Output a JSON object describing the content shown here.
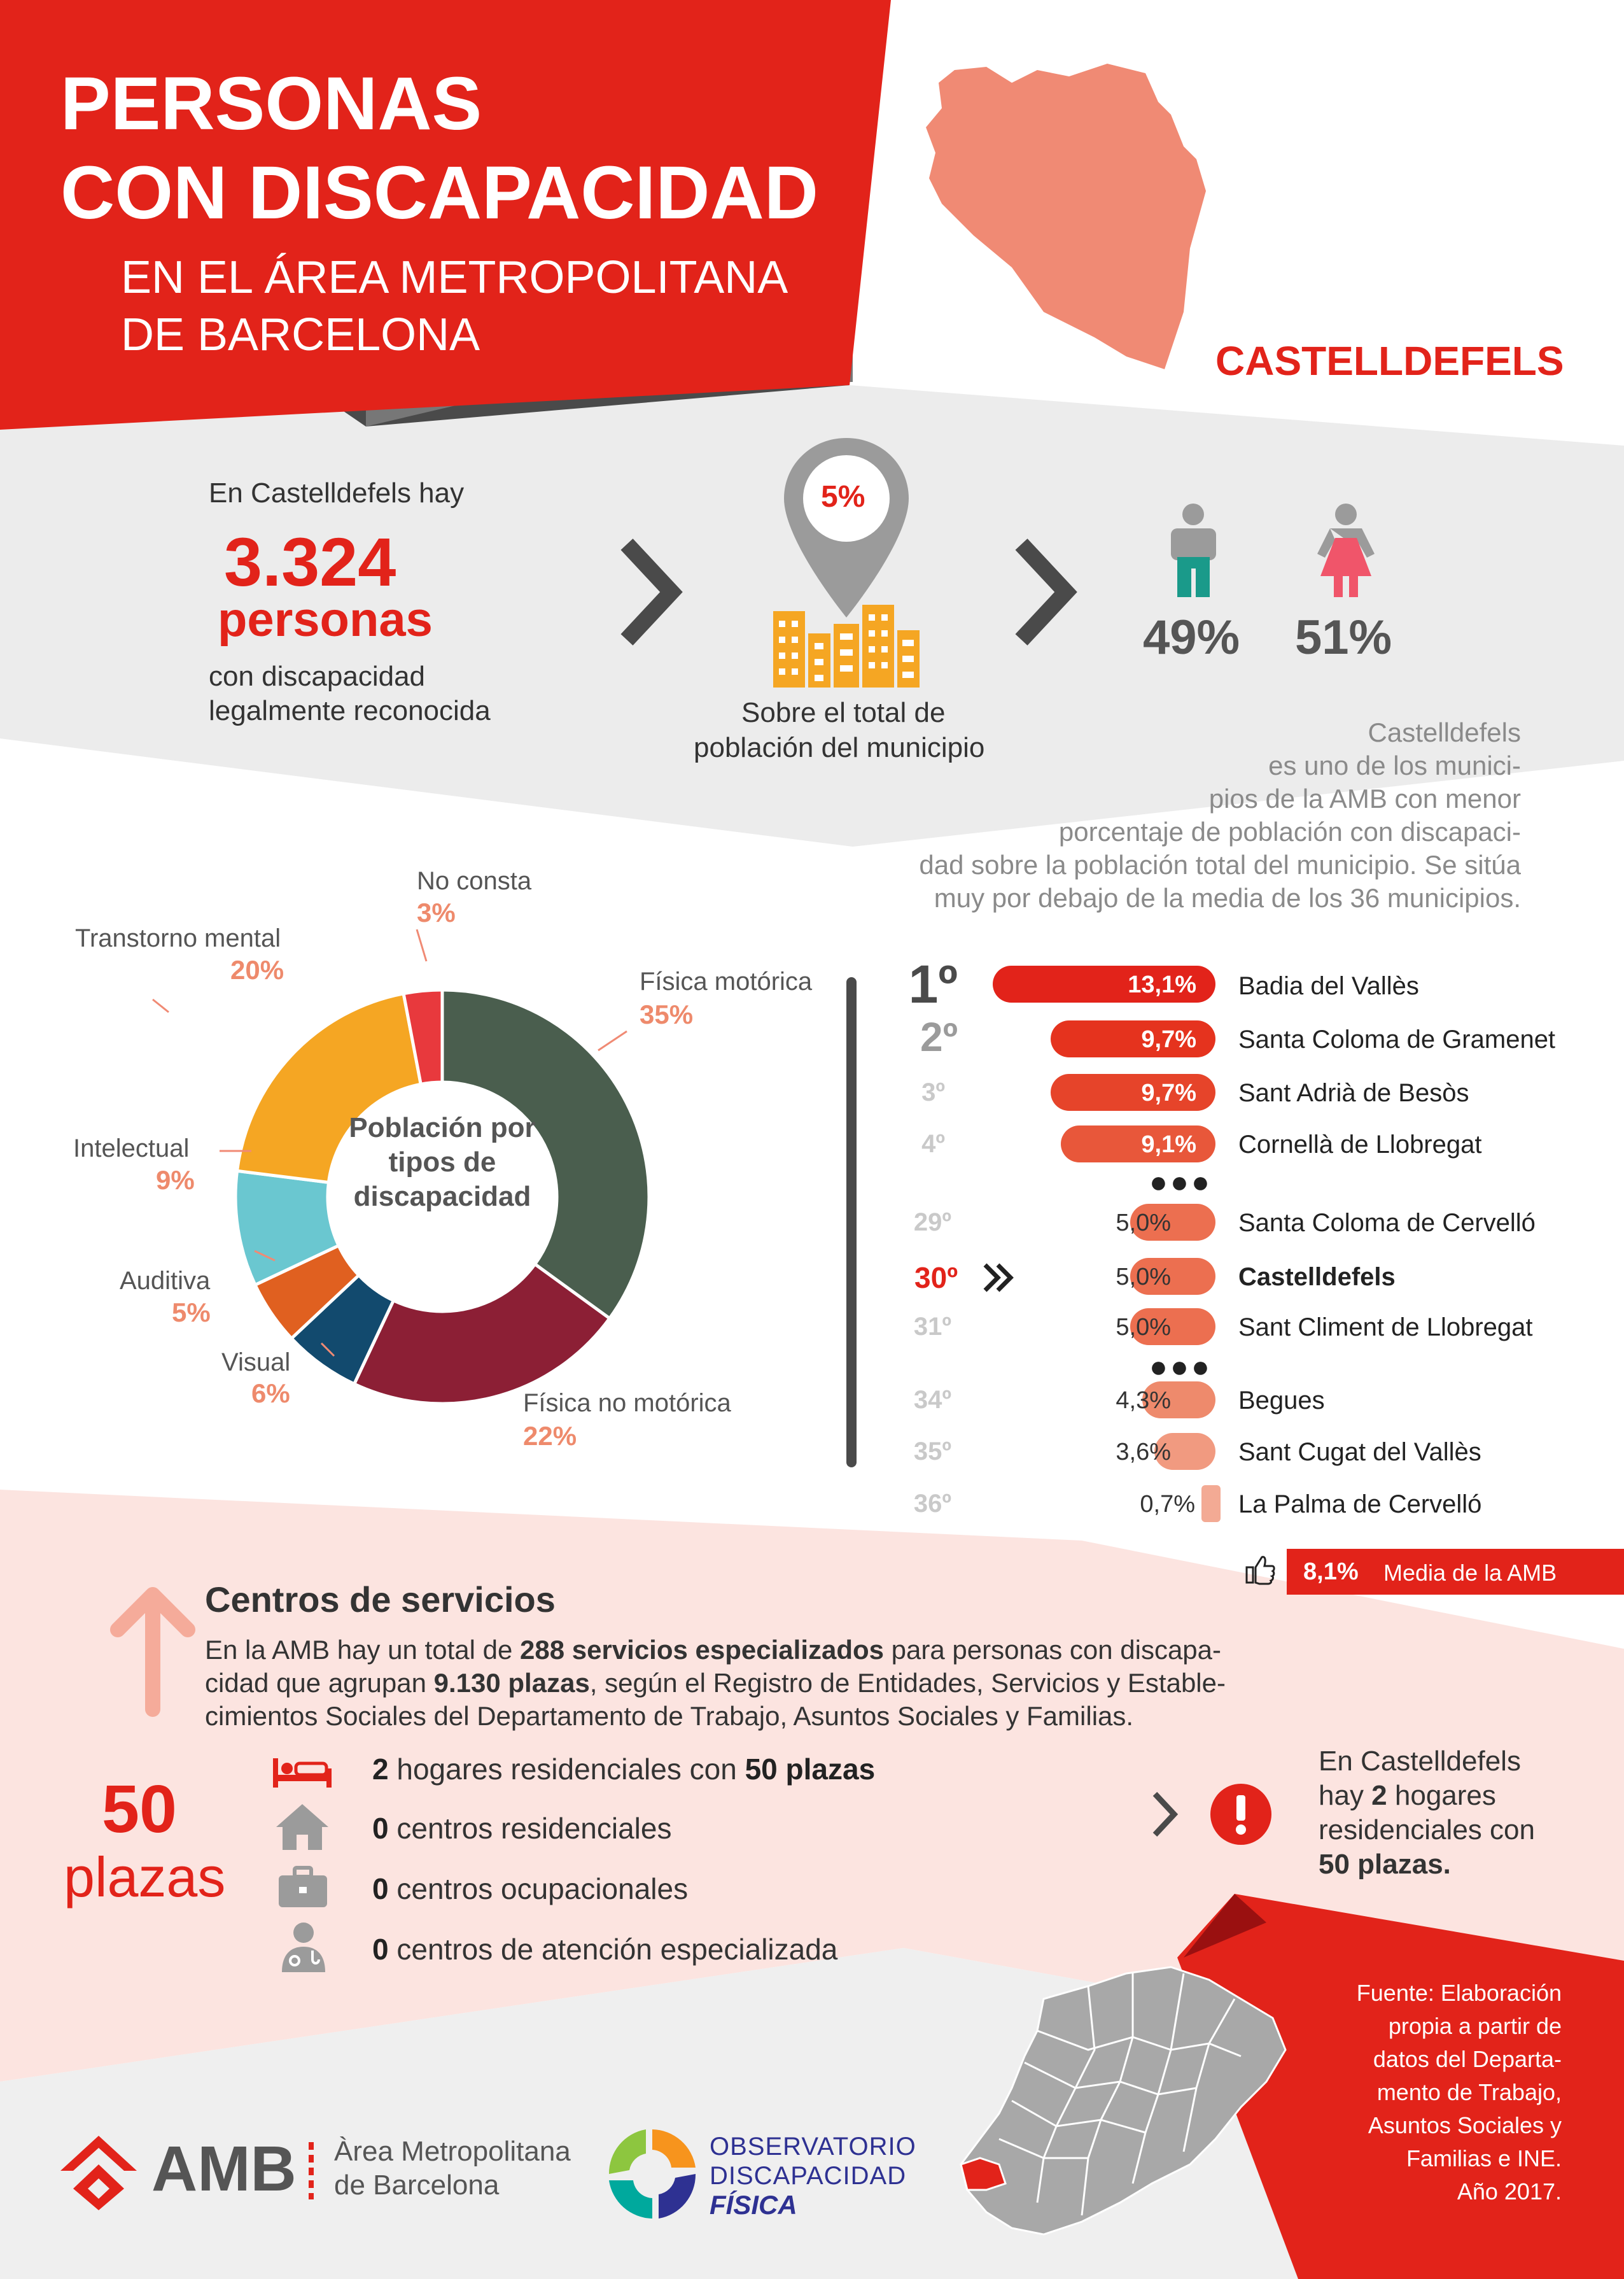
{
  "header": {
    "title_line1": "PERSONAS",
    "title_line2": "CON DISCAPACIDAD",
    "subtitle_line1": "EN EL ÁREA METROPOLITANA",
    "subtitle_line2": "DE BARCELONA",
    "municipality": "CASTELLDEFELS"
  },
  "summary": {
    "intro": "En Castelldefels hay",
    "count": "3.324",
    "unit": "personas",
    "desc_line1": "con discapacidad",
    "desc_line2": "legalmente reconocida",
    "pin_pct": "5%",
    "pin_desc_line1": "Sobre el total de",
    "pin_desc_line2": "población del municipio",
    "male_pct": "49%",
    "female_pct": "51%"
  },
  "note": {
    "lines": [
      "Castelldefels",
      "es uno de los munici-",
      "pios de la AMB con menor",
      "porcentaje de población con discapaci-",
      "dad sobre la población total del municipio. Se sitúa",
      "muy por debajo de la media de los 36 municipios."
    ]
  },
  "chart_data": [
    {
      "type": "pie",
      "title": "Población por tipos de discapacidad",
      "title_lines": [
        "Población por",
        "tipos de",
        "discapacidad"
      ],
      "categories": [
        "Física motórica",
        "Física no motórica",
        "Visual",
        "Auditiva",
        "Intelectual",
        "Transtorno mental",
        "No consta"
      ],
      "values": [
        35,
        22,
        6,
        5,
        9,
        20,
        3
      ],
      "labels": [
        "35%",
        "22%",
        "6%",
        "5%",
        "9%",
        "20%",
        "3%"
      ],
      "colors": [
        "#4a5e4e",
        "#8c1f35",
        "#124a6e",
        "#e06020",
        "#6ac7d0",
        "#f5a623",
        "#e8393d"
      ]
    },
    {
      "type": "bar",
      "title": "",
      "ranks": [
        "1º",
        "2º",
        "3º",
        "4º",
        "29º",
        "30º",
        "31º",
        "34º",
        "35º",
        "36º"
      ],
      "categories": [
        "Badia del Vallès",
        "Santa Coloma de Gramenet",
        "Sant Adrià de Besòs",
        "Cornellà de Llobregat",
        "Santa Coloma de Cervelló",
        "Castelldefels",
        "Sant Climent de Llobregat",
        "Begues",
        "Sant Cugat del Vallès",
        "La Palma de Cervelló"
      ],
      "values": [
        13.1,
        9.7,
        9.7,
        9.1,
        5.0,
        5.0,
        5.0,
        4.3,
        3.6,
        0.7
      ],
      "labels": [
        "13,1%",
        "9,7%",
        "9,7%",
        "9,1%",
        "5,0%",
        "5,0%",
        "5,0%",
        "4,3%",
        "3,6%",
        "0,7%"
      ],
      "highlight": "Castelldefels",
      "average_value": 8.1,
      "average_label": "8,1%",
      "average_text": "Media de la AMB"
    }
  ],
  "services": {
    "title": "Centros de servicios",
    "text_line1_pre": "En la AMB hay un total de ",
    "text_line1_bold": "288 servicios especializados",
    "text_line1_post": " para personas con discapa-",
    "text_line2_pre": "cidad que agrupan ",
    "text_line2_bold": "9.130 plazas",
    "text_line2_post": ", según el Registro de Entidades, Servicios y Estable-",
    "text_line3": "cimientos Sociales del Departamento de Trabajo, Asuntos Sociales y Familias.",
    "plazas_num": "50",
    "plazas_word": "plazas",
    "items": [
      {
        "icon": "bed-icon",
        "pre": "2",
        "mid": " hogares residenciales con ",
        "post": "50 plazas"
      },
      {
        "icon": "house-icon",
        "pre": "0",
        "mid": " centros residenciales",
        "post": ""
      },
      {
        "icon": "briefcase-icon",
        "pre": "0",
        "mid": " centros ocupacionales",
        "post": ""
      },
      {
        "icon": "doctor-icon",
        "pre": "0",
        "mid": " centros de atención especializada",
        "post": ""
      }
    ],
    "callout_line1": "En Castelldefels",
    "callout_line2_pre": "hay ",
    "callout_line2_bold": "2",
    "callout_line2_post": " hogares",
    "callout_line3": "residenciales con",
    "callout_line4": "50 plazas."
  },
  "source": {
    "lines": [
      "Fuente: Elaboración",
      "propia a partir de",
      "datos del  Departa-",
      "mento de Trabajo,",
      "Asuntos Sociales y",
      "Familias e INE.",
      "Año 2017."
    ]
  },
  "footer": {
    "amb": "AMB",
    "amb_line1": "Àrea Metropolitana",
    "amb_line2": "de Barcelona",
    "obs_line1": "OBSERVATORIO",
    "obs_line2": "DISCAPACIDAD",
    "obs_line3": "FÍSICA"
  },
  "colors": {
    "red": "#e2231a",
    "salmon": "#f08a74",
    "gray": "#555555",
    "teal": "#1a9a8a",
    "female": "#f0556a"
  }
}
